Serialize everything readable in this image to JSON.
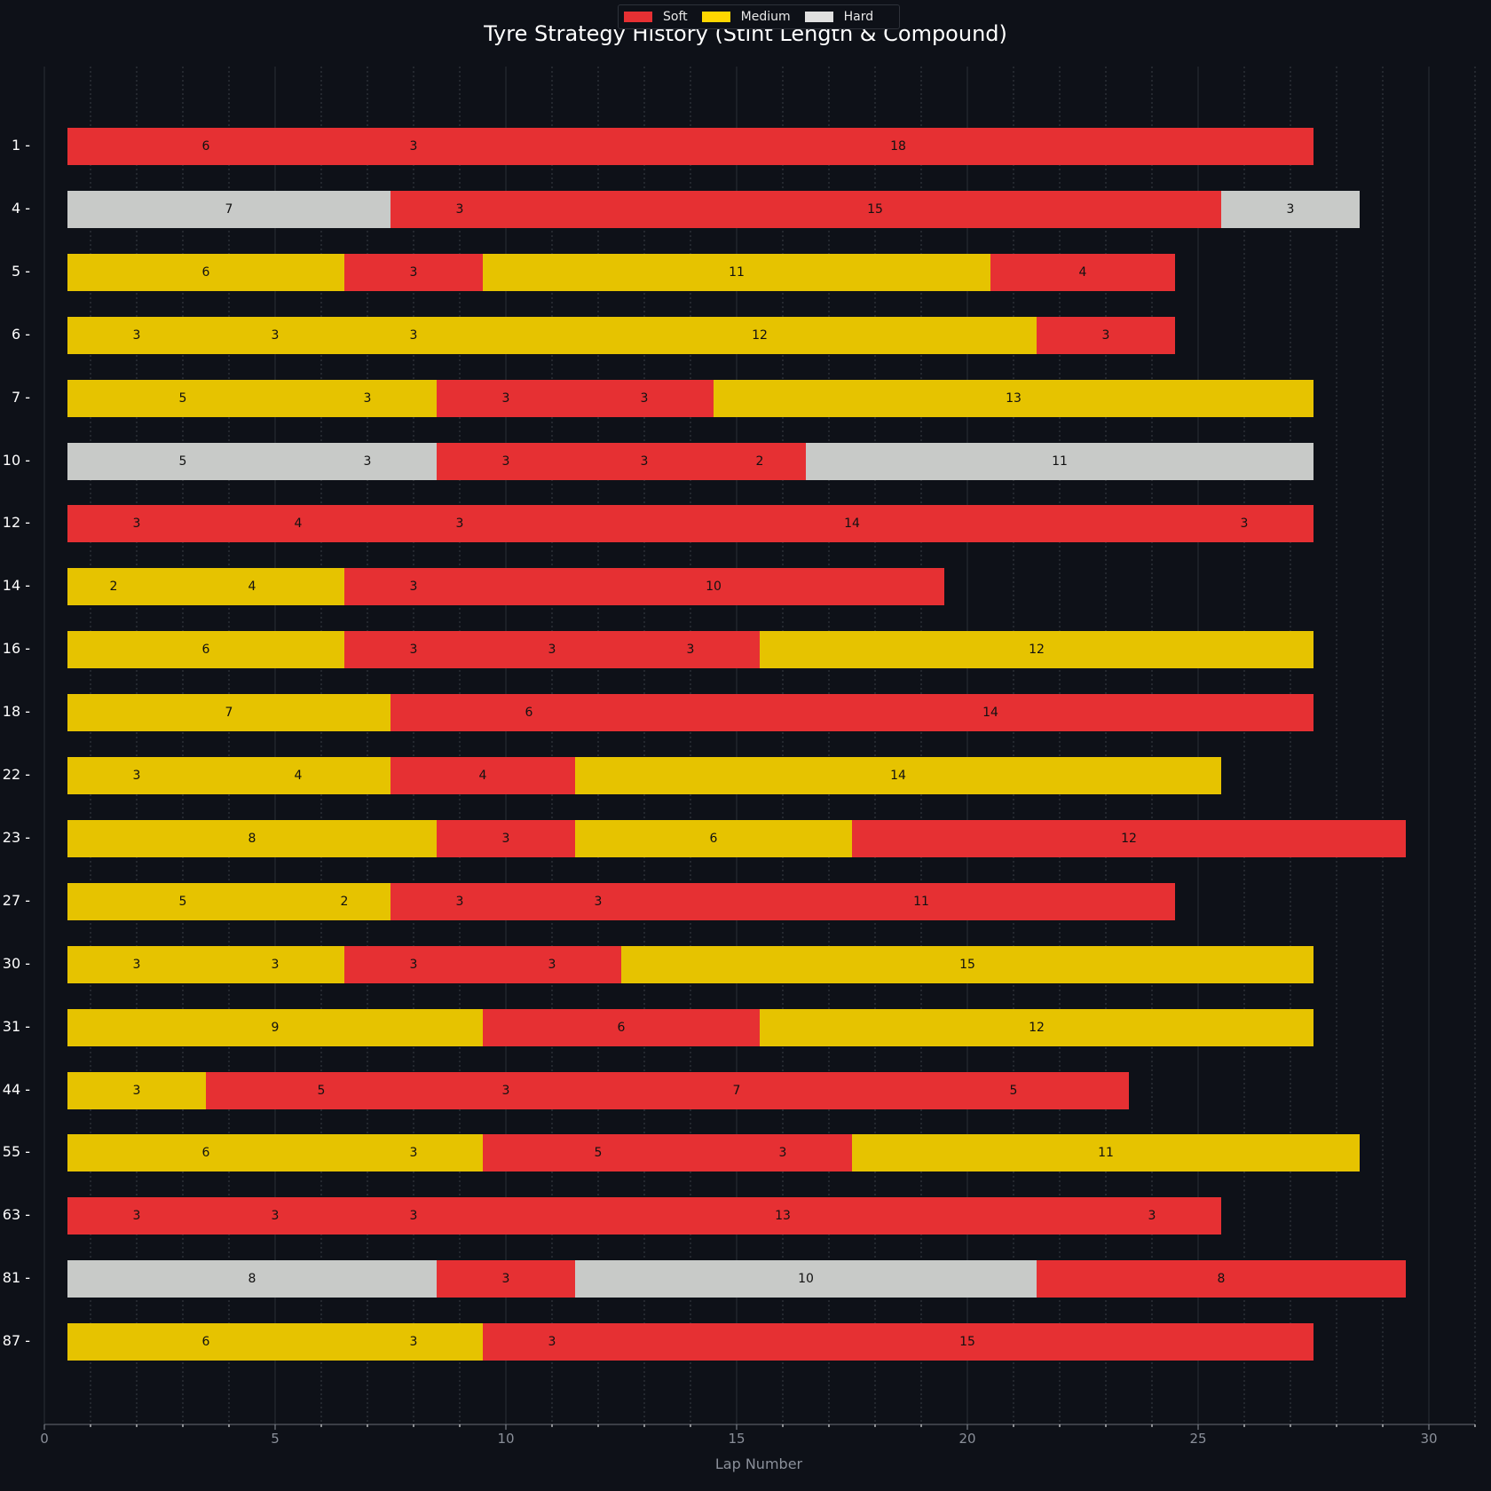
{
  "title": "Tyre Strategy History (Stint Length & Compound)",
  "legend": [
    {
      "label": "Soft",
      "compound": "soft"
    },
    {
      "label": "Medium",
      "compound": "medium"
    },
    {
      "label": "Hard",
      "compound": "hard"
    }
  ],
  "colors": {
    "background": "#0e1118",
    "soft": "#e63033",
    "medium": "#e6c300",
    "hard": "#c8cac8",
    "grid_major": "#2a2e36",
    "grid_minor": "#3a3e46",
    "axis": "#4a4e56",
    "tick_label": "#8a8f99"
  },
  "chart_data": {
    "type": "bar",
    "orientation": "horizontal-stacked",
    "title": "Tyre Strategy History (Stint Length & Compound)",
    "xlabel": "Lap Number",
    "ylabel": "",
    "xlim": [
      0,
      31
    ],
    "x_ticks": [
      0,
      5,
      10,
      15,
      20,
      25,
      30
    ],
    "grid": true,
    "legend_position": "top-center",
    "bar_start_offset": 0.5,
    "categories": [
      "1",
      "4",
      "5",
      "6",
      "7",
      "10",
      "12",
      "14",
      "16",
      "18",
      "22",
      "23",
      "27",
      "30",
      "31",
      "44",
      "55",
      "63",
      "81",
      "87"
    ],
    "rows": [
      {
        "driver": "1",
        "stints": [
          {
            "c": "soft",
            "len": 6
          },
          {
            "c": "soft",
            "len": 3
          },
          {
            "c": "soft",
            "len": 18
          }
        ]
      },
      {
        "driver": "4",
        "stints": [
          {
            "c": "hard",
            "len": 7
          },
          {
            "c": "soft",
            "len": 3
          },
          {
            "c": "soft",
            "len": 15
          },
          {
            "c": "hard",
            "len": 3
          }
        ]
      },
      {
        "driver": "5",
        "stints": [
          {
            "c": "medium",
            "len": 6
          },
          {
            "c": "soft",
            "len": 3
          },
          {
            "c": "medium",
            "len": 11
          },
          {
            "c": "soft",
            "len": 4
          }
        ]
      },
      {
        "driver": "6",
        "stints": [
          {
            "c": "medium",
            "len": 3
          },
          {
            "c": "medium",
            "len": 3
          },
          {
            "c": "medium",
            "len": 3
          },
          {
            "c": "medium",
            "len": 12
          },
          {
            "c": "soft",
            "len": 3
          }
        ]
      },
      {
        "driver": "7",
        "stints": [
          {
            "c": "medium",
            "len": 5
          },
          {
            "c": "medium",
            "len": 3
          },
          {
            "c": "soft",
            "len": 3
          },
          {
            "c": "soft",
            "len": 3
          },
          {
            "c": "medium",
            "len": 13
          }
        ]
      },
      {
        "driver": "10",
        "stints": [
          {
            "c": "hard",
            "len": 5
          },
          {
            "c": "hard",
            "len": 3
          },
          {
            "c": "soft",
            "len": 3
          },
          {
            "c": "soft",
            "len": 3
          },
          {
            "c": "soft",
            "len": 2
          },
          {
            "c": "hard",
            "len": 11
          }
        ]
      },
      {
        "driver": "12",
        "stints": [
          {
            "c": "soft",
            "len": 3
          },
          {
            "c": "soft",
            "len": 4
          },
          {
            "c": "soft",
            "len": 3
          },
          {
            "c": "soft",
            "len": 14
          },
          {
            "c": "soft",
            "len": 3
          }
        ]
      },
      {
        "driver": "14",
        "stints": [
          {
            "c": "medium",
            "len": 2
          },
          {
            "c": "medium",
            "len": 4
          },
          {
            "c": "soft",
            "len": 3
          },
          {
            "c": "soft",
            "len": 10
          }
        ]
      },
      {
        "driver": "16",
        "stints": [
          {
            "c": "medium",
            "len": 6
          },
          {
            "c": "soft",
            "len": 3
          },
          {
            "c": "soft",
            "len": 3
          },
          {
            "c": "soft",
            "len": 3
          },
          {
            "c": "medium",
            "len": 12
          }
        ]
      },
      {
        "driver": "18",
        "stints": [
          {
            "c": "medium",
            "len": 7
          },
          {
            "c": "soft",
            "len": 6
          },
          {
            "c": "soft",
            "len": 14
          }
        ]
      },
      {
        "driver": "22",
        "stints": [
          {
            "c": "medium",
            "len": 3
          },
          {
            "c": "medium",
            "len": 4
          },
          {
            "c": "soft",
            "len": 4
          },
          {
            "c": "medium",
            "len": 14
          }
        ]
      },
      {
        "driver": "23",
        "stints": [
          {
            "c": "medium",
            "len": 8
          },
          {
            "c": "soft",
            "len": 3
          },
          {
            "c": "medium",
            "len": 6
          },
          {
            "c": "soft",
            "len": 12
          }
        ]
      },
      {
        "driver": "27",
        "stints": [
          {
            "c": "medium",
            "len": 5
          },
          {
            "c": "medium",
            "len": 2
          },
          {
            "c": "soft",
            "len": 3
          },
          {
            "c": "soft",
            "len": 3
          },
          {
            "c": "soft",
            "len": 11
          }
        ]
      },
      {
        "driver": "30",
        "stints": [
          {
            "c": "medium",
            "len": 3
          },
          {
            "c": "medium",
            "len": 3
          },
          {
            "c": "soft",
            "len": 3
          },
          {
            "c": "soft",
            "len": 3
          },
          {
            "c": "medium",
            "len": 15
          }
        ]
      },
      {
        "driver": "31",
        "stints": [
          {
            "c": "medium",
            "len": 9
          },
          {
            "c": "soft",
            "len": 6
          },
          {
            "c": "medium",
            "len": 12
          }
        ]
      },
      {
        "driver": "44",
        "stints": [
          {
            "c": "medium",
            "len": 3
          },
          {
            "c": "soft",
            "len": 5
          },
          {
            "c": "soft",
            "len": 3
          },
          {
            "c": "soft",
            "len": 7
          },
          {
            "c": "soft",
            "len": 5
          }
        ]
      },
      {
        "driver": "55",
        "stints": [
          {
            "c": "medium",
            "len": 6
          },
          {
            "c": "medium",
            "len": 3
          },
          {
            "c": "soft",
            "len": 5
          },
          {
            "c": "soft",
            "len": 3
          },
          {
            "c": "medium",
            "len": 11
          }
        ]
      },
      {
        "driver": "63",
        "stints": [
          {
            "c": "soft",
            "len": 3
          },
          {
            "c": "soft",
            "len": 3
          },
          {
            "c": "soft",
            "len": 3
          },
          {
            "c": "soft",
            "len": 13
          },
          {
            "c": "soft",
            "len": 3
          }
        ]
      },
      {
        "driver": "81",
        "stints": [
          {
            "c": "hard",
            "len": 8
          },
          {
            "c": "soft",
            "len": 3
          },
          {
            "c": "hard",
            "len": 10
          },
          {
            "c": "soft",
            "len": 8
          }
        ]
      },
      {
        "driver": "87",
        "stints": [
          {
            "c": "medium",
            "len": 6
          },
          {
            "c": "medium",
            "len": 3
          },
          {
            "c": "soft",
            "len": 3
          },
          {
            "c": "soft",
            "len": 15
          }
        ]
      }
    ]
  }
}
